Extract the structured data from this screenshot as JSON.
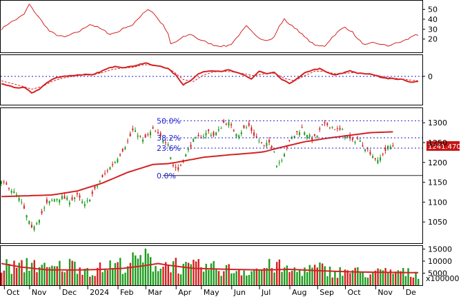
{
  "chart_data": {
    "type": "stock-multipanel",
    "x_labels": [
      "Oct",
      "Nov",
      "Dec",
      "2024",
      "Feb",
      "Mar",
      "Apr",
      "May",
      "Jun",
      "Jul",
      "Aug",
      "Sep",
      "Oct",
      "Nov",
      "De"
    ],
    "panels": {
      "rsi": {
        "ticks": [
          "50",
          "40",
          "30",
          "20"
        ],
        "ylim": [
          8,
          58
        ],
        "anchors": [
          [
            0,
            30
          ],
          [
            3,
            36
          ],
          [
            6,
            40
          ],
          [
            9,
            45
          ],
          [
            11,
            55
          ],
          [
            13,
            48
          ],
          [
            16,
            38
          ],
          [
            19,
            28
          ],
          [
            22,
            24
          ],
          [
            25,
            22
          ],
          [
            28,
            25
          ],
          [
            31,
            28
          ],
          [
            35,
            35
          ],
          [
            38,
            32
          ],
          [
            41,
            28
          ],
          [
            43,
            25
          ],
          [
            46,
            27
          ],
          [
            49,
            32
          ],
          [
            52,
            34
          ],
          [
            54,
            40
          ],
          [
            56,
            46
          ],
          [
            58,
            50
          ],
          [
            60,
            47
          ],
          [
            62,
            40
          ],
          [
            64,
            34
          ],
          [
            66,
            25
          ],
          [
            67,
            15
          ],
          [
            69,
            17
          ],
          [
            72,
            22
          ],
          [
            75,
            25
          ],
          [
            78,
            20
          ],
          [
            81,
            17
          ],
          [
            84,
            14
          ],
          [
            87,
            13
          ],
          [
            89,
            13
          ],
          [
            91,
            15
          ],
          [
            94,
            24
          ],
          [
            97,
            33
          ],
          [
            100,
            25
          ],
          [
            103,
            20
          ],
          [
            106,
            19
          ],
          [
            108,
            22
          ],
          [
            110,
            33
          ],
          [
            112,
            40
          ],
          [
            114,
            35
          ],
          [
            117,
            30
          ],
          [
            120,
            22
          ],
          [
            123,
            16
          ],
          [
            125,
            13
          ],
          [
            128,
            13
          ],
          [
            131,
            22
          ],
          [
            134,
            29
          ],
          [
            136,
            32
          ],
          [
            139,
            27
          ],
          [
            141,
            20
          ],
          [
            144,
            14
          ],
          [
            147,
            16
          ],
          [
            150,
            15
          ],
          [
            153,
            13
          ],
          [
            155,
            15
          ],
          [
            158,
            17
          ],
          [
            161,
            20
          ],
          [
            164,
            25
          ],
          [
            165,
            24
          ]
        ]
      },
      "macd": {
        "ticks": [
          "0"
        ],
        "ylim": [
          -40,
          30
        ],
        "zero_line": 0,
        "macd_anchors": [
          [
            0,
            -12
          ],
          [
            3,
            -15
          ],
          [
            6,
            -18
          ],
          [
            9,
            -17
          ],
          [
            12,
            -26
          ],
          [
            15,
            -20
          ],
          [
            18,
            -10
          ],
          [
            21,
            -3
          ],
          [
            24,
            0
          ],
          [
            27,
            1
          ],
          [
            30,
            2
          ],
          [
            33,
            3
          ],
          [
            36,
            2
          ],
          [
            39,
            7
          ],
          [
            42,
            12
          ],
          [
            45,
            16
          ],
          [
            48,
            14
          ],
          [
            51,
            15
          ],
          [
            54,
            18
          ],
          [
            57,
            21
          ],
          [
            60,
            17
          ],
          [
            63,
            16
          ],
          [
            66,
            12
          ],
          [
            69,
            2
          ],
          [
            72,
            -13
          ],
          [
            75,
            -6
          ],
          [
            78,
            4
          ],
          [
            81,
            8
          ],
          [
            84,
            9
          ],
          [
            87,
            8
          ],
          [
            90,
            10
          ],
          [
            93,
            6
          ],
          [
            96,
            2
          ],
          [
            99,
            -4
          ],
          [
            102,
            8
          ],
          [
            105,
            4
          ],
          [
            108,
            6
          ],
          [
            111,
            -5
          ],
          [
            114,
            -11
          ],
          [
            117,
            -4
          ],
          [
            120,
            5
          ],
          [
            123,
            10
          ],
          [
            126,
            12
          ],
          [
            129,
            6
          ],
          [
            132,
            2
          ],
          [
            135,
            5
          ],
          [
            138,
            9
          ],
          [
            141,
            5
          ],
          [
            144,
            4
          ],
          [
            147,
            3
          ],
          [
            150,
            -1
          ],
          [
            153,
            -3
          ],
          [
            156,
            -4
          ],
          [
            159,
            -5
          ],
          [
            162,
            -9
          ],
          [
            165,
            -8
          ]
        ],
        "signal_anchors": [
          [
            0,
            -7
          ],
          [
            4,
            -11
          ],
          [
            8,
            -15
          ],
          [
            12,
            -20
          ],
          [
            16,
            -16
          ],
          [
            20,
            -8
          ],
          [
            24,
            -3
          ],
          [
            28,
            0
          ],
          [
            32,
            2
          ],
          [
            36,
            2
          ],
          [
            40,
            6
          ],
          [
            44,
            11
          ],
          [
            48,
            13
          ],
          [
            52,
            14
          ],
          [
            56,
            18
          ],
          [
            60,
            18
          ],
          [
            64,
            15
          ],
          [
            68,
            8
          ],
          [
            72,
            -5
          ],
          [
            76,
            -8
          ],
          [
            80,
            2
          ],
          [
            84,
            7
          ],
          [
            88,
            8
          ],
          [
            92,
            7
          ],
          [
            96,
            4
          ],
          [
            100,
            1
          ],
          [
            104,
            4
          ],
          [
            108,
            5
          ],
          [
            112,
            -3
          ],
          [
            116,
            -7
          ],
          [
            120,
            1
          ],
          [
            124,
            8
          ],
          [
            128,
            8
          ],
          [
            132,
            4
          ],
          [
            136,
            5
          ],
          [
            140,
            6
          ],
          [
            144,
            4
          ],
          [
            148,
            2
          ],
          [
            152,
            -1
          ],
          [
            156,
            -3
          ],
          [
            160,
            -5
          ],
          [
            165,
            -7
          ]
        ]
      },
      "price": {
        "ticks": [
          "1300",
          "1250",
          "1200",
          "1150",
          "1100",
          "1050"
        ],
        "ylim": [
          1000,
          1335
        ],
        "last_price": "1241.470",
        "fibonacci": [
          {
            "label": "50.0%",
            "value": 1305
          },
          {
            "label": "38.2%",
            "value": 1262
          },
          {
            "label": "23.6%",
            "value": 1236
          },
          {
            "label": "0.0%",
            "value": 1167
          }
        ],
        "close_anchors": [
          [
            0,
            1150
          ],
          [
            3,
            1138
          ],
          [
            6,
            1117
          ],
          [
            8,
            1098
          ],
          [
            10,
            1065
          ],
          [
            12,
            1032
          ],
          [
            15,
            1060
          ],
          [
            18,
            1096
          ],
          [
            21,
            1108
          ],
          [
            24,
            1112
          ],
          [
            27,
            1104
          ],
          [
            30,
            1116
          ],
          [
            33,
            1092
          ],
          [
            36,
            1120
          ],
          [
            39,
            1152
          ],
          [
            42,
            1180
          ],
          [
            45,
            1202
          ],
          [
            48,
            1232
          ],
          [
            50,
            1252
          ],
          [
            52,
            1280
          ],
          [
            54,
            1272
          ],
          [
            56,
            1255
          ],
          [
            58,
            1268
          ],
          [
            60,
            1282
          ],
          [
            62,
            1270
          ],
          [
            64,
            1258
          ],
          [
            66,
            1250
          ],
          [
            67,
            1215
          ],
          [
            68,
            1192
          ],
          [
            70,
            1182
          ],
          [
            72,
            1205
          ],
          [
            74,
            1232
          ],
          [
            76,
            1255
          ],
          [
            78,
            1262
          ],
          [
            80,
            1268
          ],
          [
            82,
            1278
          ],
          [
            84,
            1268
          ],
          [
            86,
            1280
          ],
          [
            88,
            1300
          ],
          [
            90,
            1298
          ],
          [
            92,
            1280
          ],
          [
            94,
            1272
          ],
          [
            96,
            1285
          ],
          [
            98,
            1292
          ],
          [
            100,
            1270
          ],
          [
            102,
            1255
          ],
          [
            104,
            1240
          ],
          [
            106,
            1250
          ],
          [
            108,
            1232
          ],
          [
            109,
            1192
          ],
          [
            111,
            1210
          ],
          [
            113,
            1240
          ],
          [
            115,
            1262
          ],
          [
            117,
            1275
          ],
          [
            119,
            1285
          ],
          [
            121,
            1272
          ],
          [
            123,
            1258
          ],
          [
            125,
            1268
          ],
          [
            127,
            1292
          ],
          [
            129,
            1295
          ],
          [
            131,
            1290
          ],
          [
            133,
            1282
          ],
          [
            135,
            1280
          ],
          [
            137,
            1265
          ],
          [
            139,
            1252
          ],
          [
            141,
            1260
          ],
          [
            143,
            1245
          ],
          [
            145,
            1232
          ],
          [
            147,
            1218
          ],
          [
            149,
            1202
          ],
          [
            151,
            1222
          ],
          [
            153,
            1238
          ],
          [
            155,
            1242
          ]
        ],
        "ma_anchors": [
          [
            0,
            1114
          ],
          [
            20,
            1118
          ],
          [
            30,
            1128
          ],
          [
            40,
            1148
          ],
          [
            50,
            1175
          ],
          [
            60,
            1195
          ],
          [
            66,
            1197
          ],
          [
            70,
            1201
          ],
          [
            80,
            1213
          ],
          [
            90,
            1219
          ],
          [
            100,
            1224
          ],
          [
            104,
            1227
          ],
          [
            110,
            1237
          ],
          [
            120,
            1252
          ],
          [
            130,
            1262
          ],
          [
            140,
            1270
          ],
          [
            146,
            1275
          ],
          [
            150,
            1276
          ],
          [
            155,
            1277
          ]
        ]
      },
      "volume": {
        "ticks": [
          "15000",
          "10000",
          "5000"
        ],
        "unit": "x100000",
        "ylim": [
          0,
          16000
        ],
        "vol_anchors": [
          [
            0,
            8000
          ],
          [
            8,
            7400
          ],
          [
            12,
            9800
          ],
          [
            18,
            6200
          ],
          [
            24,
            7800
          ],
          [
            30,
            8600
          ],
          [
            36,
            5600
          ],
          [
            42,
            7900
          ],
          [
            48,
            8500
          ],
          [
            54,
            10200
          ],
          [
            57,
            11800
          ],
          [
            60,
            8900
          ],
          [
            64,
            8000
          ],
          [
            68,
            9400
          ],
          [
            72,
            6800
          ],
          [
            78,
            7600
          ],
          [
            84,
            7000
          ],
          [
            90,
            6500
          ],
          [
            96,
            6100
          ],
          [
            102,
            6600
          ],
          [
            108,
            8200
          ],
          [
            114,
            5900
          ],
          [
            120,
            6400
          ],
          [
            126,
            6900
          ],
          [
            132,
            5400
          ],
          [
            138,
            6000
          ],
          [
            144,
            4900
          ],
          [
            150,
            5200
          ],
          [
            156,
            5600
          ],
          [
            162,
            4900
          ],
          [
            165,
            4600
          ]
        ],
        "ma_anchors": [
          [
            0,
            9000
          ],
          [
            8,
            7500
          ],
          [
            18,
            6400
          ],
          [
            28,
            6300
          ],
          [
            38,
            6500
          ],
          [
            48,
            7000
          ],
          [
            56,
            8000
          ],
          [
            62,
            9000
          ],
          [
            66,
            8300
          ],
          [
            76,
            7000
          ],
          [
            90,
            6600
          ],
          [
            104,
            6300
          ],
          [
            114,
            6600
          ],
          [
            126,
            6000
          ],
          [
            140,
            5500
          ],
          [
            155,
            5300
          ],
          [
            165,
            5200
          ]
        ]
      }
    }
  }
}
